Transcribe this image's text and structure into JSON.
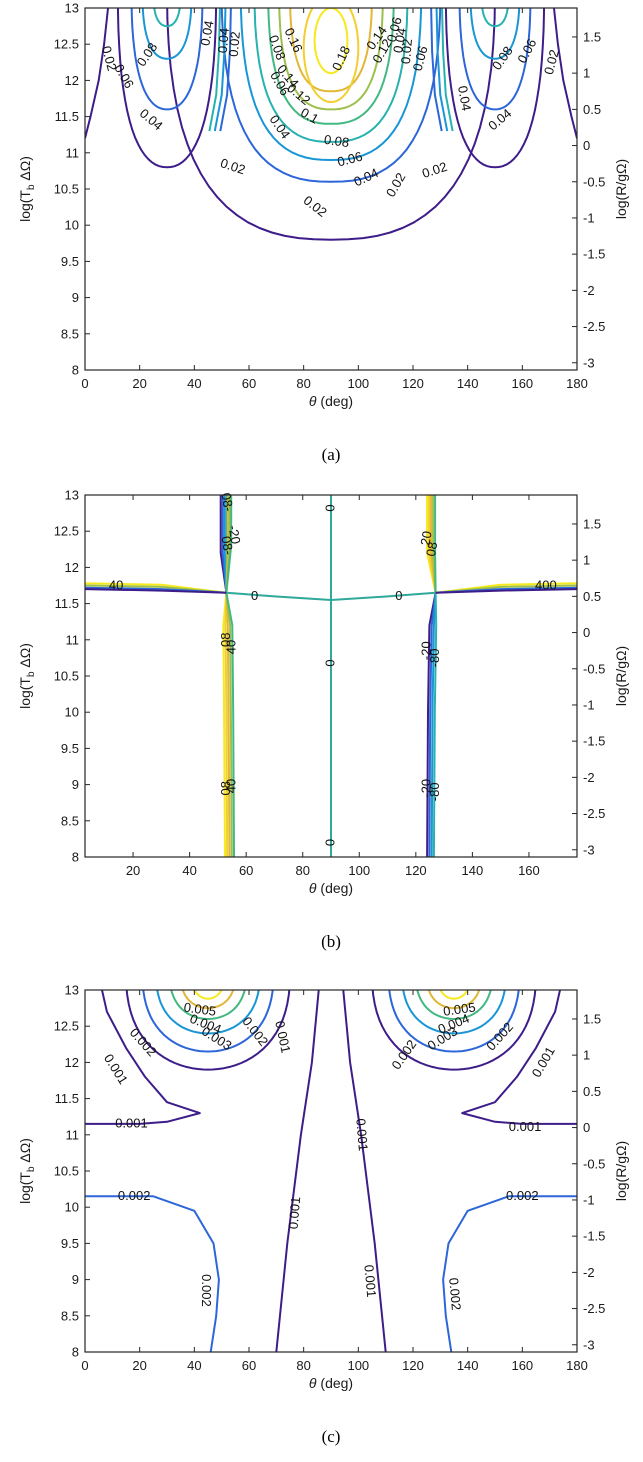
{
  "chart_data": [
    {
      "type": "contour",
      "panel": "(a)",
      "xlabel": "θ (deg)",
      "ylabel": "log(T_b ΔΩ)",
      "ylabel_right": "log(R/gΩ)",
      "xlim": [
        0,
        180
      ],
      "ylim": [
        8,
        13
      ],
      "xticks": [
        0,
        20,
        40,
        60,
        80,
        100,
        120,
        140,
        160,
        180
      ],
      "yticks": [
        8,
        8.5,
        9,
        9.5,
        10,
        10.5,
        11,
        11.5,
        12,
        12.5,
        13
      ],
      "yticks_right": [
        "-3",
        "-2.5",
        "-2",
        "-1.5",
        "-1",
        "-0.5",
        "0",
        "0.5",
        "1",
        "1.5"
      ],
      "levels": [
        0.02,
        0.04,
        0.06,
        0.08,
        0.1,
        0.12,
        0.14,
        0.16,
        0.18
      ],
      "contour_labels": [
        {
          "text": "0.18",
          "x": 94,
          "y": 12.3,
          "rot": -65
        },
        {
          "text": "0.16",
          "x": 76,
          "y": 12.55,
          "rot": 65
        },
        {
          "text": "0.14",
          "x": 74,
          "y": 12.05,
          "rot": 50
        },
        {
          "text": "0.12",
          "x": 78,
          "y": 11.8,
          "rot": 40
        },
        {
          "text": "0.1",
          "x": 82,
          "y": 11.5,
          "rot": 30
        },
        {
          "text": "0.08",
          "x": 92,
          "y": 11.15,
          "rot": 8
        },
        {
          "text": "0.06",
          "x": 97,
          "y": 10.9,
          "rot": -15
        },
        {
          "text": "0.04",
          "x": 103,
          "y": 10.65,
          "rot": -25
        },
        {
          "text": "0.02",
          "x": 114,
          "y": 10.55,
          "rot": -60
        },
        {
          "text": "0.14",
          "x": 107,
          "y": 12.58,
          "rot": -55
        },
        {
          "text": "0.12",
          "x": 109,
          "y": 12.4,
          "rot": -60
        },
        {
          "text": "0.06",
          "x": 113.5,
          "y": 12.7,
          "rot": -75
        },
        {
          "text": "0.04",
          "x": 115.5,
          "y": 12.55,
          "rot": -80
        },
        {
          "text": "0.02",
          "x": 118,
          "y": 12.4,
          "rot": -85
        },
        {
          "text": "0.08",
          "x": 70,
          "y": 12.45,
          "rot": 70
        },
        {
          "text": "0.06",
          "x": 71,
          "y": 11.95,
          "rot": 60
        },
        {
          "text": "0.04",
          "x": 71,
          "y": 11.35,
          "rot": 55
        },
        {
          "text": "0.02",
          "x": 84,
          "y": 10.25,
          "rot": 38
        },
        {
          "text": "0.08",
          "x": 23,
          "y": 12.35,
          "rot": -55
        },
        {
          "text": "0.06",
          "x": 14,
          "y": 12.05,
          "rot": 60
        },
        {
          "text": "0.04",
          "x": 24,
          "y": 11.45,
          "rot": 40
        },
        {
          "text": "0.02",
          "x": 8.5,
          "y": 12.3,
          "rot": 75
        },
        {
          "text": "0.02",
          "x": 54,
          "y": 10.8,
          "rot": 18
        },
        {
          "text": "0.04",
          "x": 45,
          "y": 12.65,
          "rot": -80
        },
        {
          "text": "0.04",
          "x": 51,
          "y": 12.55,
          "rot": -85
        },
        {
          "text": "0.02",
          "x": 55,
          "y": 12.5,
          "rot": -85
        },
        {
          "text": "0.06",
          "x": 123,
          "y": 12.3,
          "rot": -75
        },
        {
          "text": "0.08",
          "x": 153,
          "y": 12.3,
          "rot": -55
        },
        {
          "text": "0.06",
          "x": 162,
          "y": 12.4,
          "rot": -62
        },
        {
          "text": "0.04",
          "x": 152,
          "y": 11.45,
          "rot": -40
        },
        {
          "text": "0.02",
          "x": 171,
          "y": 12.25,
          "rot": -75
        },
        {
          "text": "0.02",
          "x": 128,
          "y": 10.75,
          "rot": -18
        },
        {
          "text": "0.04",
          "x": 138.5,
          "y": 11.75,
          "rot": 80
        }
      ]
    },
    {
      "type": "contour",
      "panel": "(b)",
      "xlabel": "θ (deg)",
      "ylabel": "log(T_b ΔΩ)",
      "ylabel_right": "log(R/gΩ)",
      "xlim": [
        3,
        177
      ],
      "ylim": [
        8,
        13
      ],
      "xticks": [
        20,
        40,
        60,
        80,
        100,
        120,
        140,
        160
      ],
      "yticks": [
        8,
        8.5,
        9,
        9.5,
        10,
        10.5,
        11,
        11.5,
        12,
        12.5,
        13
      ],
      "yticks_right": [
        "-3",
        "-2.5",
        "-2",
        "-1.5",
        "-1",
        "-0.5",
        "0",
        "0.5",
        "1",
        "1.5"
      ],
      "contour_labels": [
        {
          "text": "0",
          "x": 90,
          "y": 12.82,
          "rot": -90
        },
        {
          "text": "0",
          "x": 90,
          "y": 10.68,
          "rot": -90
        },
        {
          "text": "0",
          "x": 90,
          "y": 8.2,
          "rot": -90
        },
        {
          "text": "0",
          "x": 63,
          "y": 11.6,
          "rot": 0
        },
        {
          "text": "0",
          "x": 114,
          "y": 11.6,
          "rot": 0
        },
        {
          "text": "-20",
          "x": 55.5,
          "y": 12.45,
          "rot": 80
        },
        {
          "text": "08-",
          "x": 53,
          "y": 12.3,
          "rot": 80
        },
        {
          "text": "08-",
          "x": 53,
          "y": 12.9,
          "rot": 80
        },
        {
          "text": "08",
          "x": 53,
          "y": 11.0,
          "rot": -90
        },
        {
          "text": "40",
          "x": 55,
          "y": 10.9,
          "rot": -90
        },
        {
          "text": "08",
          "x": 53,
          "y": 8.95,
          "rot": -90
        },
        {
          "text": "40",
          "x": 55,
          "y": 8.98,
          "rot": -90
        },
        {
          "text": "20",
          "x": 124,
          "y": 12.4,
          "rot": -80
        },
        {
          "text": "08",
          "x": 126,
          "y": 12.25,
          "rot": -80
        },
        {
          "text": "-20",
          "x": 124,
          "y": 10.85,
          "rot": -90
        },
        {
          "text": "-80",
          "x": 127,
          "y": 10.75,
          "rot": -90
        },
        {
          "text": "-20",
          "x": 124,
          "y": 8.95,
          "rot": -90
        },
        {
          "text": "-80",
          "x": 127,
          "y": 8.9,
          "rot": -90
        },
        {
          "text": "40",
          "x": 14,
          "y": 11.74,
          "rot": 0
        },
        {
          "text": "400",
          "x": 166,
          "y": 11.74,
          "rot": 0
        }
      ]
    },
    {
      "type": "contour",
      "panel": "(c)",
      "xlabel": "θ (deg)",
      "ylabel": "log(T_b ΔΩ)",
      "ylabel_right": "log(R/gΩ)",
      "xlim": [
        0,
        180
      ],
      "ylim": [
        8,
        13
      ],
      "xticks": [
        0,
        20,
        40,
        60,
        80,
        100,
        120,
        140,
        160,
        180
      ],
      "yticks": [
        8,
        8.5,
        9,
        9.5,
        10,
        10.5,
        11,
        11.5,
        12,
        12.5,
        13
      ],
      "yticks_right": [
        "-3",
        "-2.5",
        "-2",
        "-1.5",
        "-1",
        "-0.5",
        "0",
        "0.5",
        "1",
        "1.5"
      ],
      "levels": [
        0.001,
        0.002,
        0.003,
        0.004,
        0.005
      ],
      "contour_labels": [
        {
          "text": "0.005",
          "x": 42,
          "y": 12.72,
          "rot": 8
        },
        {
          "text": "0.004",
          "x": 44,
          "y": 12.52,
          "rot": 22
        },
        {
          "text": "0.003",
          "x": 48,
          "y": 12.32,
          "rot": 32
        },
        {
          "text": "0.002",
          "x": 21,
          "y": 12.27,
          "rot": 48
        },
        {
          "text": "0.002",
          "x": 62,
          "y": 12.42,
          "rot": 52
        },
        {
          "text": "0.001",
          "x": 11,
          "y": 11.9,
          "rot": 58
        },
        {
          "text": "0.001",
          "x": 72,
          "y": 12.35,
          "rot": 78
        },
        {
          "text": "0.001",
          "x": 17,
          "y": 11.15,
          "rot": 0
        },
        {
          "text": "0.002",
          "x": 18,
          "y": 10.15,
          "rot": 0
        },
        {
          "text": "0.002",
          "x": 44,
          "y": 8.85,
          "rot": 90
        },
        {
          "text": "0.001",
          "x": 77,
          "y": 9.92,
          "rot": -85
        },
        {
          "text": "0.005",
          "x": 137,
          "y": 12.72,
          "rot": -8
        },
        {
          "text": "0.004",
          "x": 135,
          "y": 12.52,
          "rot": -22
        },
        {
          "text": "0.003",
          "x": 131,
          "y": 12.32,
          "rot": -32
        },
        {
          "text": "0.002",
          "x": 117,
          "y": 12.1,
          "rot": -55
        },
        {
          "text": "0.002",
          "x": 152,
          "y": 12.35,
          "rot": -48
        },
        {
          "text": "0.001",
          "x": 168,
          "y": 12.0,
          "rot": -60
        },
        {
          "text": "0.001",
          "x": 101,
          "y": 11.0,
          "rot": 85
        },
        {
          "text": "0.001",
          "x": 161,
          "y": 11.1,
          "rot": 0
        },
        {
          "text": "0.002",
          "x": 160,
          "y": 10.15,
          "rot": 0
        },
        {
          "text": "0.002",
          "x": 135,
          "y": 8.8,
          "rot": 85
        },
        {
          "text": "0.001",
          "x": 104,
          "y": 8.98,
          "rot": 85
        }
      ]
    }
  ],
  "palette": {
    "lv1": "#3e1c8a",
    "lv2": "#2c66d8",
    "lv3": "#1896d6",
    "lv4": "#27b2b0",
    "lv5": "#43b880",
    "lv6": "#9cc04b",
    "lv7": "#e2b735",
    "lv8": "#f3ce2e",
    "lv9": "#f6e91d",
    "mid": "#2ea99a"
  }
}
